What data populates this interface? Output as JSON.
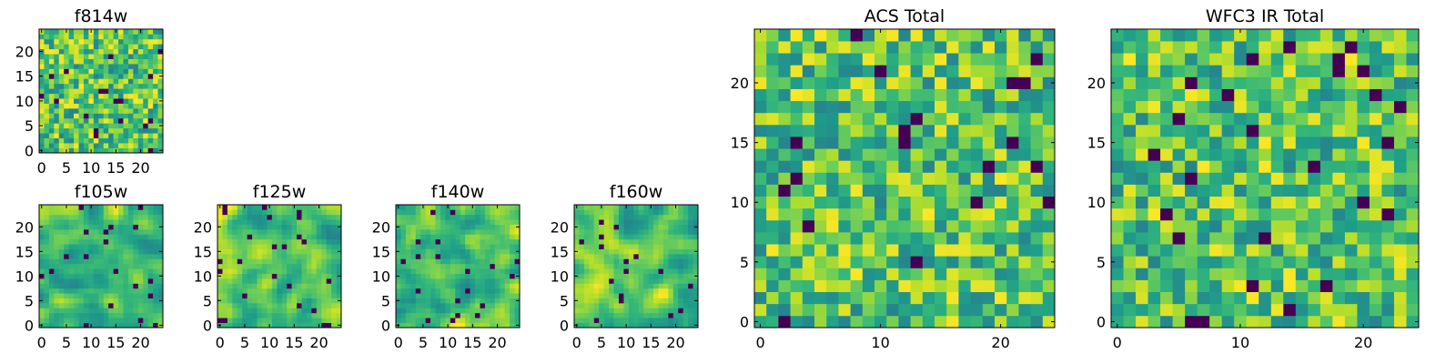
{
  "chart_data": [
    {
      "id": "f814w",
      "type": "heatmap",
      "title": "f814w",
      "size": 25,
      "xticks": [
        0,
        5,
        10,
        15,
        20
      ],
      "yticks": [
        0,
        5,
        10,
        15,
        20
      ],
      "colormap": "viridis",
      "seed": 11,
      "smooth": 0
    },
    {
      "id": "f105w",
      "type": "heatmap",
      "title": "f105w",
      "size": 25,
      "xticks": [
        0,
        5,
        10,
        15,
        20
      ],
      "yticks": [
        0,
        5,
        10,
        15,
        20
      ],
      "colormap": "viridis",
      "seed": 23,
      "smooth": 2
    },
    {
      "id": "f125w",
      "type": "heatmap",
      "title": "f125w",
      "size": 25,
      "xticks": [
        0,
        5,
        10,
        15,
        20
      ],
      "yticks": [
        0,
        5,
        10,
        15,
        20
      ],
      "colormap": "viridis",
      "seed": 37,
      "smooth": 2
    },
    {
      "id": "f140w",
      "type": "heatmap",
      "title": "f140w",
      "size": 25,
      "xticks": [
        0,
        5,
        10,
        15,
        20
      ],
      "yticks": [
        0,
        5,
        10,
        15,
        20
      ],
      "colormap": "viridis",
      "seed": 41,
      "smooth": 2
    },
    {
      "id": "f160w",
      "type": "heatmap",
      "title": "f160w",
      "size": 25,
      "xticks": [
        0,
        5,
        10,
        15,
        20
      ],
      "yticks": [
        0,
        5,
        10,
        15,
        20
      ],
      "colormap": "viridis",
      "seed": 53,
      "smooth": 2
    },
    {
      "id": "acs-total",
      "type": "heatmap",
      "title": "ACS Total",
      "size": 25,
      "xticks": [
        0,
        10,
        20
      ],
      "yticks": [
        0,
        5,
        10,
        15,
        20
      ],
      "colormap": "viridis",
      "seed": 67,
      "smooth": 0
    },
    {
      "id": "wfc3-ir-total",
      "type": "heatmap",
      "title": "WFC3 IR Total",
      "size": 25,
      "xticks": [
        0,
        10,
        20
      ],
      "yticks": [
        0,
        5,
        10,
        15,
        20
      ],
      "colormap": "viridis",
      "seed": 79,
      "smooth": 0
    }
  ]
}
